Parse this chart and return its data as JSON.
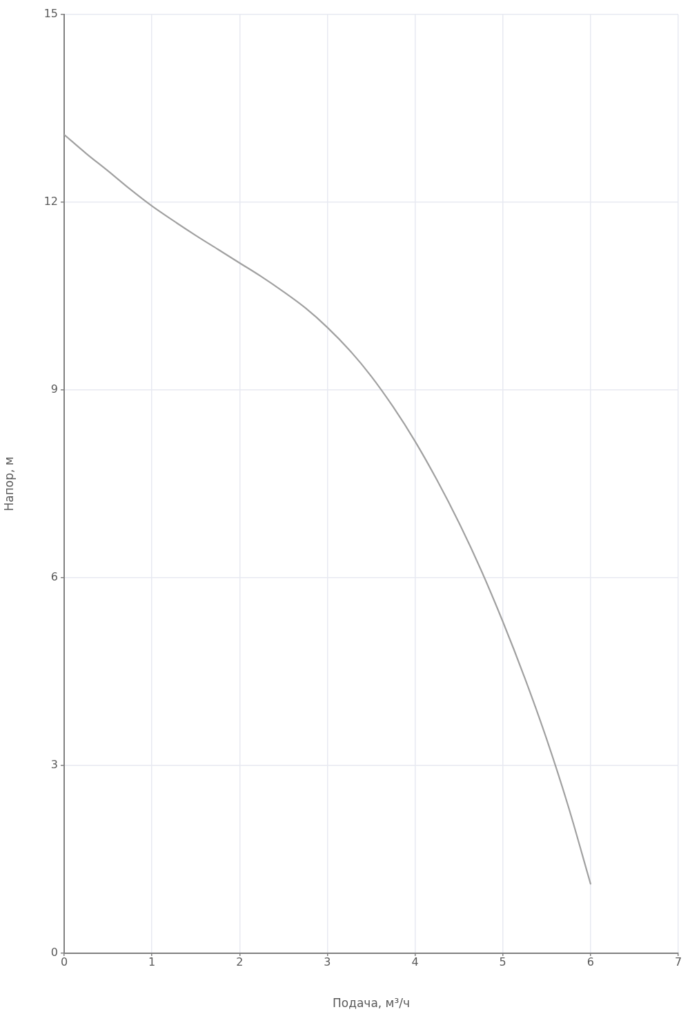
{
  "chart_data": {
    "type": "line",
    "xlabel": "Подача, м³/ч",
    "ylabel": "Напор, м",
    "x": [
      0,
      0.25,
      0.5,
      0.75,
      1,
      1.25,
      1.5,
      1.75,
      2,
      2.25,
      2.5,
      2.75,
      3,
      3.25,
      3.5,
      3.75,
      4,
      4.25,
      4.5,
      4.75,
      5,
      5.25,
      5.5,
      5.75,
      6
    ],
    "values": [
      13.08,
      12.78,
      12.5,
      12.21,
      11.94,
      11.7,
      11.47,
      11.25,
      11.03,
      10.81,
      10.57,
      10.31,
      10.0,
      9.64,
      9.22,
      8.73,
      8.18,
      7.56,
      6.88,
      6.13,
      5.3,
      4.4,
      3.42,
      2.33,
      1.11
    ],
    "color": "#a0a0a0",
    "xlim": [
      0,
      7
    ],
    "ylim": [
      0,
      15
    ],
    "xticks": [
      0,
      1,
      2,
      3,
      4,
      5,
      6,
      7
    ],
    "yticks": [
      0,
      3,
      6,
      9,
      12,
      15
    ],
    "grid": true
  }
}
